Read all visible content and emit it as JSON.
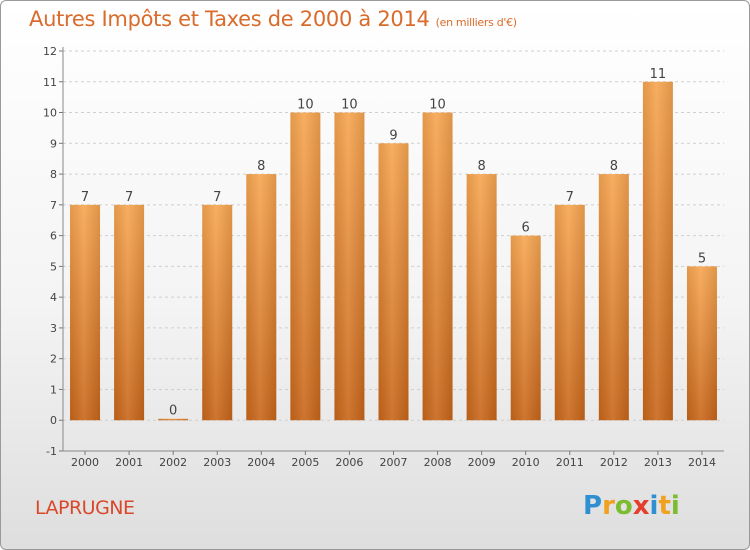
{
  "header": {
    "title": "Autres Impôts et Taxes de 2000 à 2014",
    "unit": "(en milliers d'€)"
  },
  "footer": {
    "commune": "LAPRUGNE",
    "logo": "Proxiti"
  },
  "colors": {
    "bar_light": "#f7a651",
    "bar_dark": "#c8661a",
    "accent": "#d96b2b"
  },
  "chart_data": {
    "type": "bar",
    "title": "Autres Impôts et Taxes de 2000 à 2014",
    "ylabel": "",
    "xlabel": "",
    "categories": [
      "2000",
      "2001",
      "2002",
      "2003",
      "2004",
      "2005",
      "2006",
      "2007",
      "2008",
      "2009",
      "2010",
      "2011",
      "2012",
      "2013",
      "2014"
    ],
    "values": [
      7,
      7,
      0,
      7,
      8,
      10,
      10,
      9,
      10,
      8,
      6,
      7,
      8,
      11,
      5
    ],
    "data_labels": [
      "7",
      "7",
      "0",
      "7",
      "8",
      "10",
      "10",
      "9",
      "10",
      "8",
      "6",
      "7",
      "8",
      "11",
      "5"
    ],
    "y_ticks": [
      "-1",
      "0",
      "1",
      "2",
      "3",
      "4",
      "5",
      "6",
      "7",
      "8",
      "9",
      "10",
      "11",
      "12"
    ],
    "ylim": [
      -1,
      12
    ],
    "grid": true
  }
}
